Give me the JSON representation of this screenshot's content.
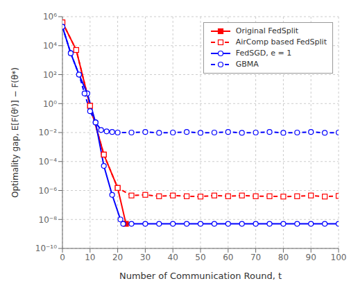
{
  "chart_data": {
    "type": "line",
    "xlabel": "Number of Communication Round, t",
    "ylabel": "Optimality gap, E[F(θᵗ)] − F(θ*)",
    "log": "y",
    "grid": true,
    "legend": "upper right",
    "xlim": [
      0,
      100
    ],
    "xticks": [
      0,
      10,
      20,
      30,
      40,
      50,
      60,
      70,
      80,
      90,
      100
    ],
    "ylim": [
      1e-10,
      1000000.0
    ],
    "yticks": [
      {
        "value": 1e-10,
        "label": "10⁻¹⁰"
      },
      {
        "value": 1e-08,
        "label": "10⁻⁸"
      },
      {
        "value": 1e-06,
        "label": "10⁻⁶"
      },
      {
        "value": 0.0001,
        "label": "10⁻⁴"
      },
      {
        "value": 0.01,
        "label": "10⁻²"
      },
      {
        "value": 1,
        "label": "10⁰"
      },
      {
        "value": 100,
        "label": "10²"
      },
      {
        "value": 10000,
        "label": "10⁴"
      },
      {
        "value": 1000000,
        "label": "10⁶"
      }
    ],
    "series": [
      {
        "name": "Original FedSplit",
        "color": "#ff0000",
        "line_style": "solid",
        "marker": "square",
        "x": [
          0,
          5,
          10,
          15,
          20,
          23
        ],
        "values": [
          400000.0,
          5000.0,
          0.7,
          0.0003,
          1.5e-06,
          5e-09
        ]
      },
      {
        "name": "AirComp based FedSplit",
        "color": "#ff0000",
        "line_style": "dashed",
        "marker": "open_square",
        "x": [
          0,
          5,
          10,
          15,
          20,
          25,
          30,
          35,
          40,
          45,
          50,
          55,
          60,
          65,
          70,
          75,
          80,
          85,
          90,
          95,
          100
        ],
        "values": [
          400000.0,
          5000.0,
          0.7,
          0.0003,
          1.5e-06,
          4.5e-07,
          5e-07,
          4e-07,
          4.5e-07,
          4e-07,
          3.8e-07,
          4.5e-07,
          4e-07,
          4.5e-07,
          4e-07,
          4e-07,
          3.8e-07,
          4e-07,
          4.5e-07,
          3.8e-07,
          4.2e-07
        ]
      },
      {
        "name": "FedSGD, e = 1",
        "color": "#0000ff",
        "line_style": "solid",
        "marker": "open_circle",
        "x": [
          0,
          3,
          6,
          9,
          12,
          15,
          18,
          21,
          22,
          25,
          30,
          35,
          40,
          45,
          50,
          55,
          60,
          65,
          70,
          75,
          80,
          85,
          90,
          95,
          100
        ],
        "values": [
          200000.0,
          3000.0,
          100.0,
          5,
          0.05,
          5e-05,
          5e-07,
          1e-08,
          5e-09,
          5e-09,
          5e-09,
          5e-09,
          5e-09,
          5e-09,
          5e-09,
          5e-09,
          5e-09,
          5e-09,
          5e-09,
          5e-09,
          5e-09,
          5e-09,
          5e-09,
          5e-09,
          5e-09
        ]
      },
      {
        "name": "GBMA",
        "color": "#0000ff",
        "line_style": "dashed",
        "marker": "open_circle",
        "x": [
          0,
          3,
          6,
          8,
          10,
          12,
          14,
          16,
          18,
          20,
          25,
          30,
          35,
          40,
          45,
          50,
          55,
          60,
          65,
          70,
          75,
          80,
          85,
          90,
          95,
          100
        ],
        "values": [
          200000.0,
          3000.0,
          100.0,
          5,
          0.3,
          0.05,
          0.015,
          0.012,
          0.011,
          0.01,
          0.01,
          0.011,
          0.0095,
          0.01,
          0.011,
          0.0095,
          0.01,
          0.011,
          0.0095,
          0.01,
          0.011,
          0.0095,
          0.01,
          0.011,
          0.0095,
          0.01
        ]
      }
    ]
  }
}
